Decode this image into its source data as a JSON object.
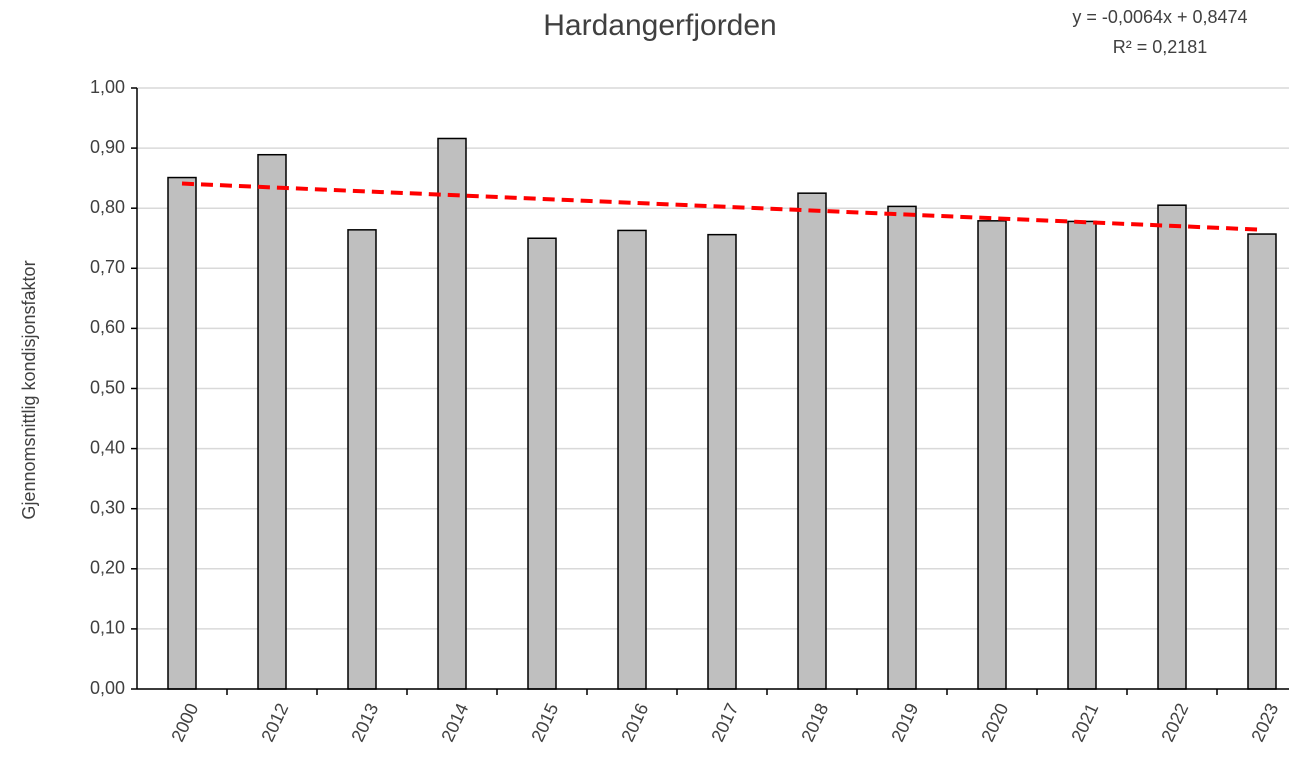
{
  "chart_data": {
    "type": "bar",
    "title": "Hardangerfjorden",
    "y_label": "Gjennomsnittlig kondisjonsfaktor",
    "annotations": [
      "y = -0,0064x + 0,8474",
      "R² = 0,2181"
    ],
    "categories": [
      "2000",
      "2012",
      "2013",
      "2014",
      "2015",
      "2016",
      "2017",
      "2018",
      "2019",
      "2020",
      "2021",
      "2022",
      "2023"
    ],
    "values": [
      0.851,
      0.889,
      0.764,
      0.916,
      0.75,
      0.763,
      0.756,
      0.825,
      0.803,
      0.779,
      0.778,
      0.805,
      0.757
    ],
    "color": "#bfbfbf",
    "trendline": {
      "type": "linear",
      "slope": -0.0064,
      "intercept": 0.8474,
      "color": "#ff0000",
      "dashed": true
    },
    "ylim": [
      0,
      1
    ],
    "yticks": [
      {
        "value": 0,
        "label": "0,00"
      },
      {
        "value": 0.1,
        "label": "0,10"
      },
      {
        "value": 0.2,
        "label": "0,20"
      },
      {
        "value": 0.3,
        "label": "0,30"
      },
      {
        "value": 0.4,
        "label": "0,40"
      },
      {
        "value": 0.5,
        "label": "0,50"
      },
      {
        "value": 0.6,
        "label": "0,60"
      },
      {
        "value": 0.7,
        "label": "0,70"
      },
      {
        "value": 0.8,
        "label": "0,80"
      },
      {
        "value": 0.9,
        "label": "0,90"
      },
      {
        "value": 1,
        "label": "1,00"
      }
    ],
    "grid": true
  }
}
